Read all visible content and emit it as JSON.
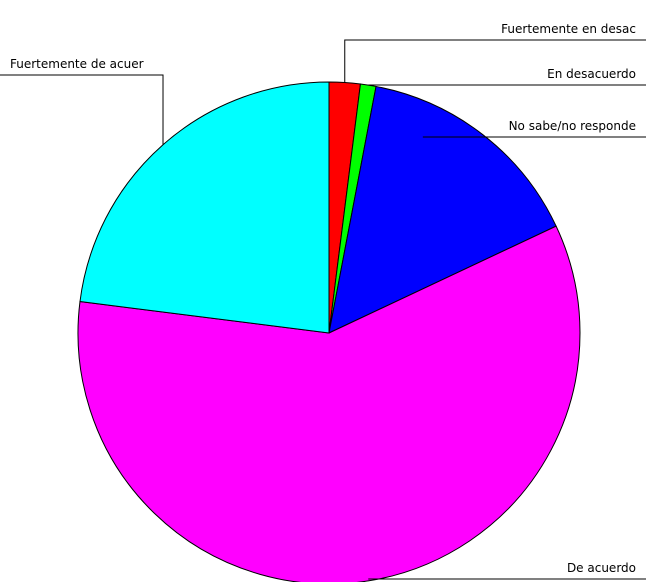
{
  "chart_data": {
    "type": "pie",
    "categories": [
      "Fuertemente en desac",
      "En desacuerdo",
      "No sabe/no responde",
      "De acuerdo",
      "Fuertemente de acuer"
    ],
    "values": [
      2,
      1,
      15,
      59,
      23
    ],
    "colors": [
      "#ff0000",
      "#00ff00",
      "#0000ff",
      "#ff00ff",
      "#00ffff"
    ]
  }
}
